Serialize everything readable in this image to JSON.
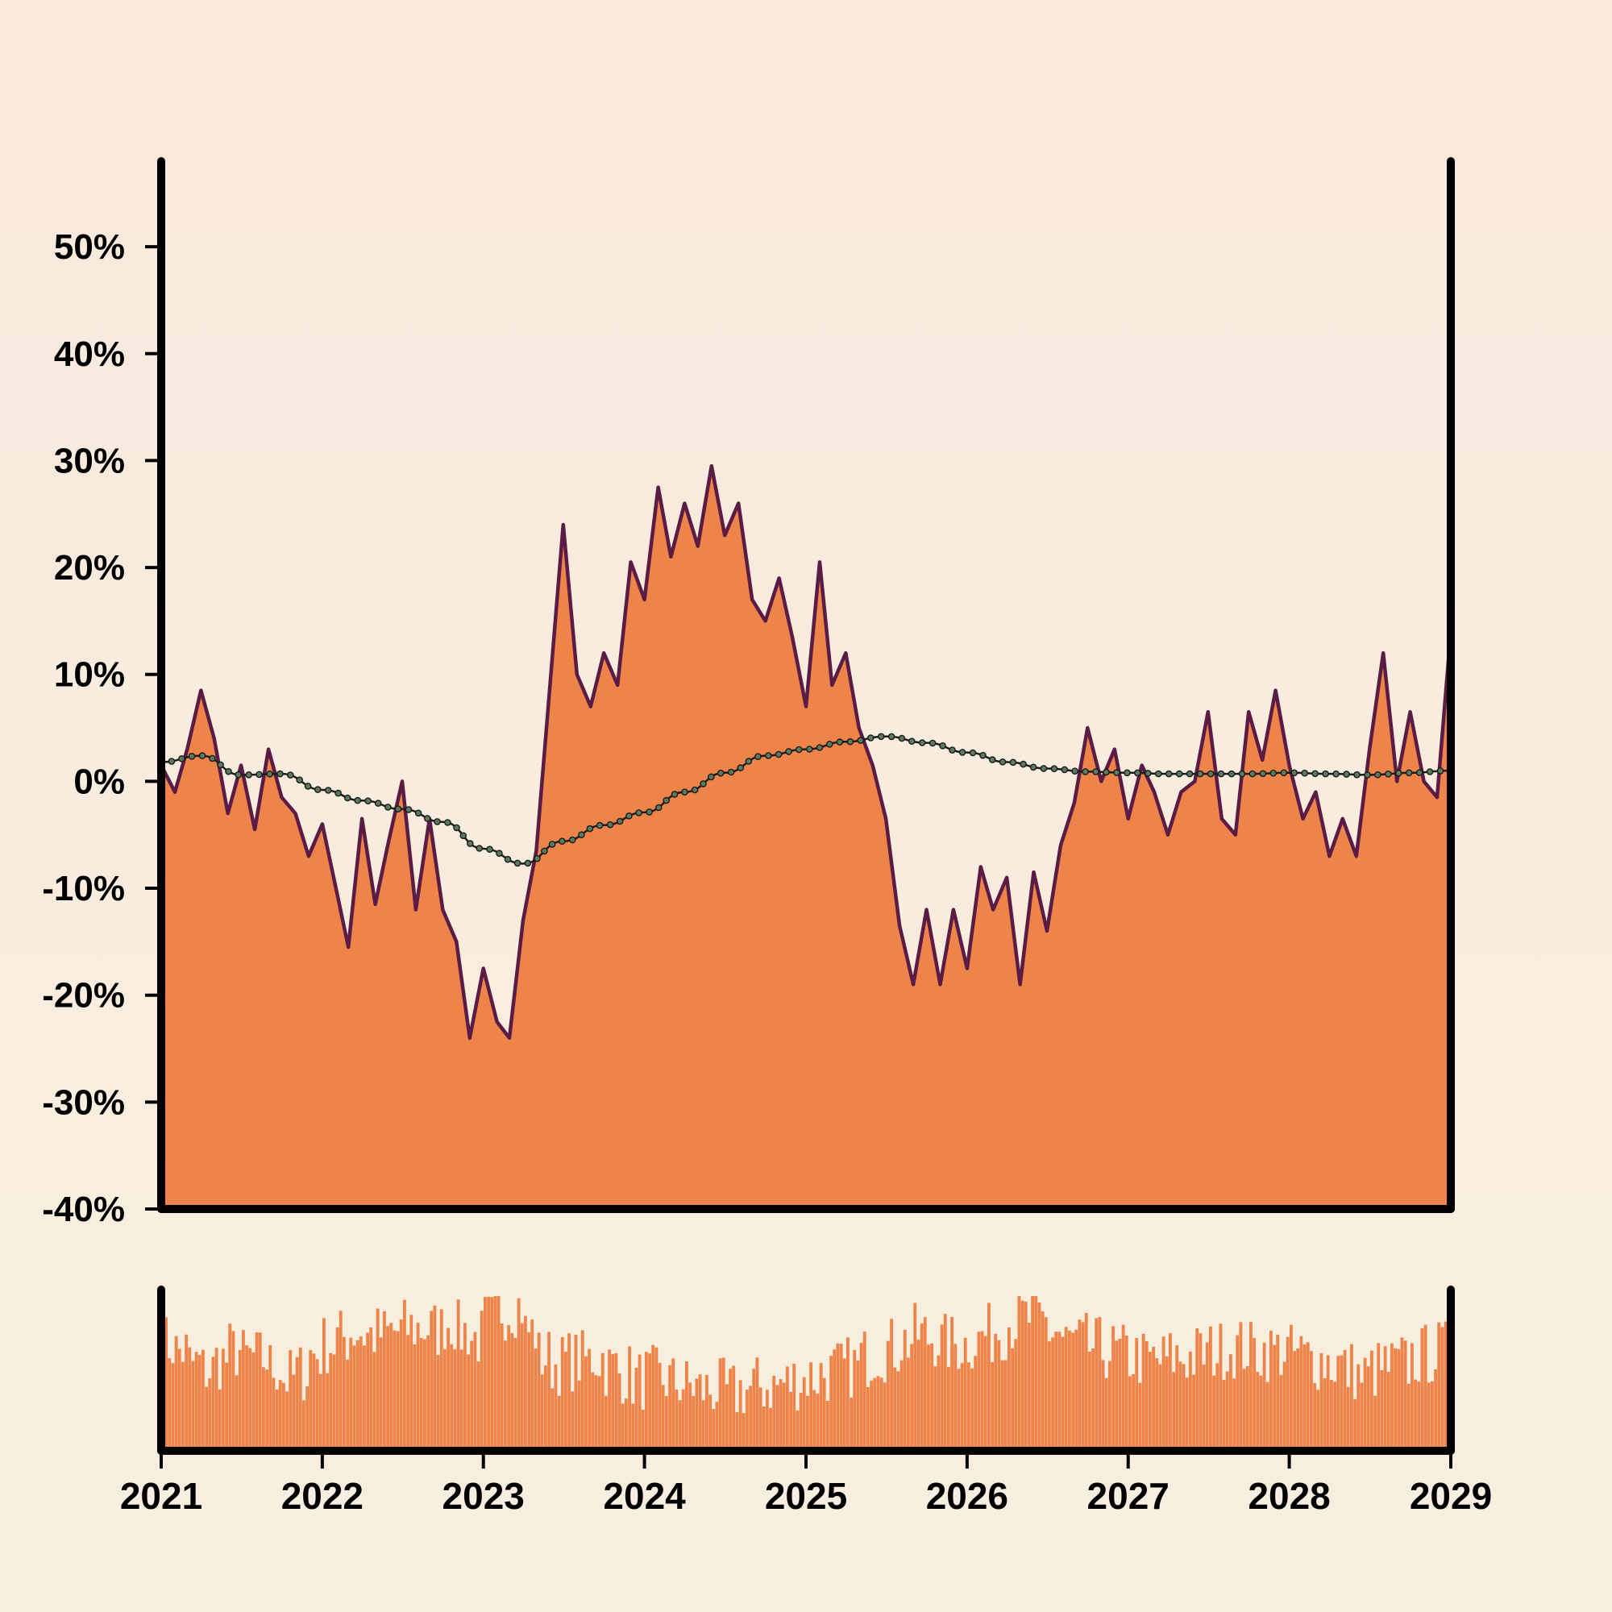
{
  "colors": {
    "bg_top": "#f9e9dd",
    "bg_bottom": "#f7efdf",
    "area_fill": "#ee8449",
    "line": "#5a1c45",
    "trend_line": "#1b1b1b",
    "trend_marker_fill": "#5b7a5e",
    "axis": "#000000"
  },
  "chart_data": [
    {
      "type": "area",
      "x_axis": {
        "type": "date",
        "range": [
          "2021-01-01",
          "2029-01-01"
        ]
      },
      "ylim": [
        -40,
        58
      ],
      "y_ticks": [
        -40,
        -30,
        -20,
        -10,
        0,
        10,
        20,
        30,
        40,
        50
      ],
      "y_tick_labels": [
        "-40%",
        "-30%",
        "-20%",
        "-10%",
        "0%",
        "10%",
        "20%",
        "30%",
        "40%",
        "50%"
      ],
      "grid": false,
      "legend": "none",
      "series": [
        {
          "style": "filled-area",
          "points": [
            [
              "2021-01-01",
              1.5
            ],
            [
              "2021-02-01",
              -1.0
            ],
            [
              "2021-03-01",
              3.0
            ],
            [
              "2021-04-01",
              8.5
            ],
            [
              "2021-05-01",
              4.0
            ],
            [
              "2021-06-01",
              -3.0
            ],
            [
              "2021-07-01",
              1.5
            ],
            [
              "2021-08-01",
              -4.5
            ],
            [
              "2021-09-01",
              3.0
            ],
            [
              "2021-10-01",
              -1.5
            ],
            [
              "2021-11-01",
              -3.0
            ],
            [
              "2021-12-01",
              -7.0
            ],
            [
              "2022-01-01",
              -4.0
            ],
            [
              "2022-02-01",
              -10.0
            ],
            [
              "2022-03-01",
              -15.5
            ],
            [
              "2022-04-01",
              -3.5
            ],
            [
              "2022-05-01",
              -11.5
            ],
            [
              "2022-06-01",
              -5.5
            ],
            [
              "2022-07-01",
              0.0
            ],
            [
              "2022-08-01",
              -12.0
            ],
            [
              "2022-09-01",
              -3.5
            ],
            [
              "2022-10-01",
              -12.0
            ],
            [
              "2022-11-01",
              -15.0
            ],
            [
              "2022-12-01",
              -24.0
            ],
            [
              "2023-01-01",
              -17.5
            ],
            [
              "2023-02-01",
              -22.5
            ],
            [
              "2023-03-01",
              -24.0
            ],
            [
              "2023-04-01",
              -13.0
            ],
            [
              "2023-05-01",
              -6.5
            ],
            [
              "2023-06-01",
              9.0
            ],
            [
              "2023-07-01",
              24.0
            ],
            [
              "2023-08-01",
              10.0
            ],
            [
              "2023-09-01",
              7.0
            ],
            [
              "2023-10-01",
              12.0
            ],
            [
              "2023-11-01",
              9.0
            ],
            [
              "2023-12-01",
              20.5
            ],
            [
              "2024-01-01",
              17.0
            ],
            [
              "2024-02-01",
              27.5
            ],
            [
              "2024-03-01",
              21.0
            ],
            [
              "2024-04-01",
              26.0
            ],
            [
              "2024-05-01",
              22.0
            ],
            [
              "2024-06-01",
              29.5
            ],
            [
              "2024-07-01",
              23.0
            ],
            [
              "2024-08-01",
              26.0
            ],
            [
              "2024-09-01",
              17.0
            ],
            [
              "2024-10-01",
              15.0
            ],
            [
              "2024-11-01",
              19.0
            ],
            [
              "2024-12-01",
              13.5
            ],
            [
              "2025-01-01",
              7.0
            ],
            [
              "2025-02-01",
              20.5
            ],
            [
              "2025-03-01",
              9.0
            ],
            [
              "2025-04-01",
              12.0
            ],
            [
              "2025-05-01",
              5.0
            ],
            [
              "2025-06-01",
              1.5
            ],
            [
              "2025-07-01",
              -3.5
            ],
            [
              "2025-08-01",
              -13.5
            ],
            [
              "2025-09-01",
              -19.0
            ],
            [
              "2025-10-01",
              -12.0
            ],
            [
              "2025-11-01",
              -19.0
            ],
            [
              "2025-12-01",
              -12.0
            ],
            [
              "2026-01-01",
              -17.5
            ],
            [
              "2026-02-01",
              -8.0
            ],
            [
              "2026-03-01",
              -12.0
            ],
            [
              "2026-04-01",
              -9.0
            ],
            [
              "2026-05-01",
              -19.0
            ],
            [
              "2026-06-01",
              -8.5
            ],
            [
              "2026-07-01",
              -14.0
            ],
            [
              "2026-08-01",
              -6.0
            ],
            [
              "2026-09-01",
              -2.0
            ],
            [
              "2026-10-01",
              5.0
            ],
            [
              "2026-11-01",
              0.0
            ],
            [
              "2026-12-01",
              3.0
            ],
            [
              "2027-01-01",
              -3.5
            ],
            [
              "2027-02-01",
              1.5
            ],
            [
              "2027-03-01",
              -1.0
            ],
            [
              "2027-04-01",
              -5.0
            ],
            [
              "2027-05-01",
              -1.0
            ],
            [
              "2027-06-01",
              0.0
            ],
            [
              "2027-07-01",
              6.5
            ],
            [
              "2027-08-01",
              -3.5
            ],
            [
              "2027-09-01",
              -5.0
            ],
            [
              "2027-10-01",
              6.5
            ],
            [
              "2027-11-01",
              2.0
            ],
            [
              "2027-12-01",
              8.5
            ],
            [
              "2028-01-01",
              1.5
            ],
            [
              "2028-02-01",
              -3.5
            ],
            [
              "2028-03-01",
              -1.0
            ],
            [
              "2028-04-01",
              -7.0
            ],
            [
              "2028-05-01",
              -3.5
            ],
            [
              "2028-06-01",
              -7.0
            ],
            [
              "2028-07-01",
              3.0
            ],
            [
              "2028-08-01",
              12.0
            ],
            [
              "2028-09-01",
              0.0
            ],
            [
              "2028-10-01",
              6.5
            ],
            [
              "2028-11-01",
              0.0
            ],
            [
              "2028-12-01",
              -1.5
            ],
            [
              "2029-01-01",
              14.0
            ]
          ]
        },
        {
          "style": "dotted-trend",
          "points": [
            [
              "2021-01-01",
              1.8
            ],
            [
              "2021-04-01",
              2.4
            ],
            [
              "2021-07-01",
              0.6
            ],
            [
              "2021-10-01",
              0.7
            ],
            [
              "2022-01-01",
              -0.8
            ],
            [
              "2022-04-01",
              -1.8
            ],
            [
              "2022-07-01",
              -2.6
            ],
            [
              "2022-10-01",
              -3.8
            ],
            [
              "2023-01-01",
              -6.3
            ],
            [
              "2023-04-01",
              -7.7
            ],
            [
              "2023-07-01",
              -5.6
            ],
            [
              "2023-10-01",
              -4.1
            ],
            [
              "2024-01-01",
              -2.9
            ],
            [
              "2024-04-01",
              -1.0
            ],
            [
              "2024-07-01",
              0.8
            ],
            [
              "2024-10-01",
              2.4
            ],
            [
              "2025-01-01",
              3.0
            ],
            [
              "2025-04-01",
              3.7
            ],
            [
              "2025-07-01",
              4.2
            ],
            [
              "2025-10-01",
              3.6
            ],
            [
              "2026-01-01",
              2.7
            ],
            [
              "2026-04-01",
              1.8
            ],
            [
              "2026-07-01",
              1.2
            ],
            [
              "2026-10-01",
              0.9
            ],
            [
              "2027-01-01",
              0.8
            ],
            [
              "2027-04-01",
              0.7
            ],
            [
              "2027-07-01",
              0.7
            ],
            [
              "2027-10-01",
              0.7
            ],
            [
              "2028-01-01",
              0.8
            ],
            [
              "2028-04-01",
              0.7
            ],
            [
              "2028-07-01",
              0.6
            ],
            [
              "2028-10-01",
              0.8
            ],
            [
              "2029-01-01",
              1.0
            ]
          ]
        }
      ]
    },
    {
      "type": "bar",
      "role": "lower-panel",
      "x_axis": {
        "type": "date",
        "range": [
          "2021-01-01",
          "2029-01-01"
        ]
      },
      "x_tick_labels": [
        "2021",
        "2022",
        "2023",
        "2024",
        "2025",
        "2026",
        "2027",
        "2028",
        "2029"
      ],
      "y_axis_labels": "none",
      "ylim": [
        0,
        100
      ],
      "grid": false,
      "monthly_levels": [
        [
          "2021-01",
          66
        ],
        [
          "2021-02",
          62
        ],
        [
          "2021-03",
          54
        ],
        [
          "2021-04",
          50
        ],
        [
          "2021-05",
          56
        ],
        [
          "2021-06",
          62
        ],
        [
          "2021-07",
          58
        ],
        [
          "2021-08",
          57
        ],
        [
          "2021-09",
          52
        ],
        [
          "2021-10",
          45
        ],
        [
          "2021-11",
          49
        ],
        [
          "2021-12",
          60
        ],
        [
          "2022-01",
          66
        ],
        [
          "2022-02",
          70
        ],
        [
          "2022-03",
          74
        ],
        [
          "2022-04",
          72
        ],
        [
          "2022-05",
          72
        ],
        [
          "2022-06",
          74
        ],
        [
          "2022-07",
          76
        ],
        [
          "2022-08",
          76
        ],
        [
          "2022-09",
          75
        ],
        [
          "2022-10",
          80
        ],
        [
          "2022-11",
          74
        ],
        [
          "2022-12",
          70
        ],
        [
          "2023-01",
          80
        ],
        [
          "2023-02",
          88
        ],
        [
          "2023-03",
          90
        ],
        [
          "2023-04",
          74
        ],
        [
          "2023-05",
          58
        ],
        [
          "2023-06",
          54
        ],
        [
          "2023-07",
          56
        ],
        [
          "2023-08",
          56
        ],
        [
          "2023-09",
          58
        ],
        [
          "2023-10",
          52
        ],
        [
          "2023-11",
          48
        ],
        [
          "2023-12",
          44
        ],
        [
          "2024-01",
          46
        ],
        [
          "2024-02",
          44
        ],
        [
          "2024-03",
          42
        ],
        [
          "2024-04",
          40
        ],
        [
          "2024-05",
          38
        ],
        [
          "2024-06",
          38
        ],
        [
          "2024-07",
          36
        ],
        [
          "2024-08",
          38
        ],
        [
          "2024-09",
          40
        ],
        [
          "2024-10",
          40
        ],
        [
          "2024-11",
          42
        ],
        [
          "2024-12",
          44
        ],
        [
          "2025-01",
          46
        ],
        [
          "2025-02",
          48
        ],
        [
          "2025-03",
          50
        ],
        [
          "2025-04",
          52
        ],
        [
          "2025-05",
          58
        ],
        [
          "2025-06",
          62
        ],
        [
          "2025-07",
          64
        ],
        [
          "2025-08",
          68
        ],
        [
          "2025-09",
          72
        ],
        [
          "2025-10",
          70
        ],
        [
          "2025-11",
          66
        ],
        [
          "2025-12",
          66
        ],
        [
          "2026-01",
          68
        ],
        [
          "2026-02",
          72
        ],
        [
          "2026-03",
          76
        ],
        [
          "2026-04",
          80
        ],
        [
          "2026-05",
          82
        ],
        [
          "2026-06",
          80
        ],
        [
          "2026-07",
          74
        ],
        [
          "2026-08",
          68
        ],
        [
          "2026-09",
          66
        ],
        [
          "2026-10",
          64
        ],
        [
          "2026-11",
          62
        ],
        [
          "2026-12",
          60
        ],
        [
          "2027-01",
          58
        ],
        [
          "2027-02",
          56
        ],
        [
          "2027-03",
          56
        ],
        [
          "2027-04",
          58
        ],
        [
          "2027-05",
          58
        ],
        [
          "2027-06",
          60
        ],
        [
          "2027-07",
          62
        ],
        [
          "2027-08",
          64
        ],
        [
          "2027-09",
          64
        ],
        [
          "2027-10",
          62
        ],
        [
          "2027-11",
          62
        ],
        [
          "2027-12",
          62
        ],
        [
          "2028-01",
          60
        ],
        [
          "2028-02",
          58
        ],
        [
          "2028-03",
          56
        ],
        [
          "2028-04",
          54
        ],
        [
          "2028-05",
          50
        ],
        [
          "2028-06",
          46
        ],
        [
          "2028-07",
          50
        ],
        [
          "2028-08",
          52
        ],
        [
          "2028-09",
          54
        ],
        [
          "2028-10",
          58
        ],
        [
          "2028-11",
          60
        ],
        [
          "2028-12",
          62
        ]
      ]
    }
  ]
}
